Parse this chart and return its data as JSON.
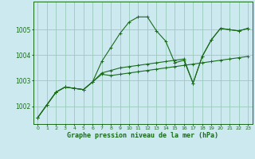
{
  "title": "Graphe pression niveau de la mer (hPa)",
  "background_color": "#cce9f0",
  "grid_color": "#99ccbb",
  "line_color": "#1a6b1a",
  "xlim": [
    -0.5,
    23.5
  ],
  "ylim": [
    1001.3,
    1006.1
  ],
  "yticks": [
    1002,
    1003,
    1004,
    1005
  ],
  "xticks": [
    0,
    1,
    2,
    3,
    4,
    5,
    6,
    7,
    8,
    9,
    10,
    11,
    12,
    13,
    14,
    15,
    16,
    17,
    18,
    19,
    20,
    21,
    22,
    23
  ],
  "series": [
    [
      1001.55,
      1002.05,
      1002.55,
      1002.75,
      1002.7,
      1002.65,
      1002.95,
      1003.25,
      1003.2,
      1003.25,
      1003.3,
      1003.35,
      1003.4,
      1003.45,
      1003.5,
      1003.55,
      1003.6,
      1003.65,
      1003.7,
      1003.75,
      1003.8,
      1003.85,
      1003.9,
      1003.95
    ],
    [
      1001.55,
      1002.05,
      1002.55,
      1002.75,
      1002.7,
      1002.65,
      1002.95,
      1003.75,
      1004.3,
      1004.85,
      1005.3,
      1005.5,
      1005.5,
      1004.95,
      1004.55,
      1003.7,
      1003.8,
      1002.9,
      1003.95,
      1004.6,
      1005.05,
      1005.0,
      1004.95,
      1005.05
    ],
    [
      1001.55,
      1002.05,
      1002.55,
      1002.75,
      1002.7,
      1002.65,
      1002.95,
      1003.3,
      1003.4,
      1003.5,
      1003.55,
      1003.6,
      1003.65,
      1003.7,
      1003.75,
      1003.8,
      1003.85,
      1002.9,
      1003.95,
      1004.6,
      1005.05,
      1005.0,
      1004.95,
      1005.05
    ]
  ]
}
